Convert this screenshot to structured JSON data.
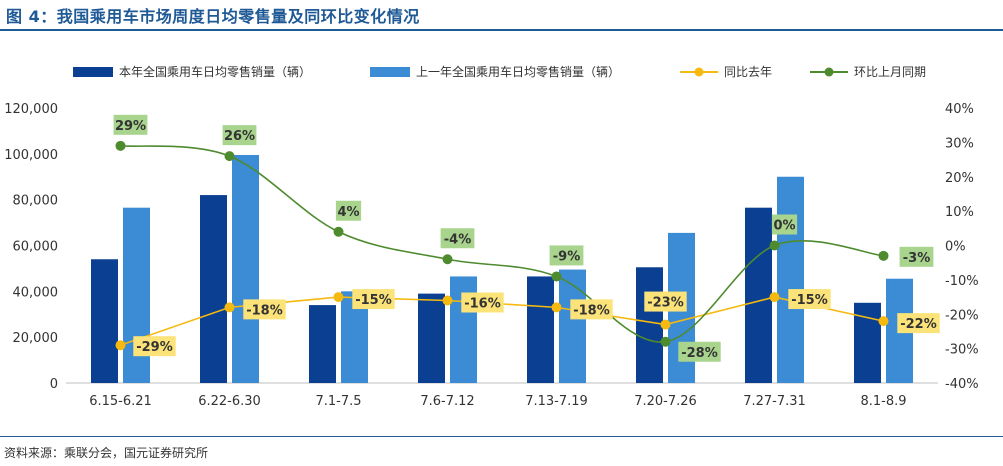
{
  "title": "图 4：我国乘用车市场周度日均零售量及同环比变化情况",
  "source": "资料来源：乘联分会，国元证券研究所",
  "colors": {
    "title": "#1f5a96",
    "bar_current": "#0b3f91",
    "bar_last": "#3b8bd5",
    "yoy": "#f5b90f",
    "mom": "#4e8b2e",
    "yoy_label_bg": "#fbe37a",
    "mom_label_bg": "#a8d48e"
  },
  "chart_data": {
    "type": "bar",
    "categories": [
      "6.15-6.21",
      "6.22-6.30",
      "7.1-7.5",
      "7.6-7.12",
      "7.13-7.19",
      "7.20-7.26",
      "7.27-7.31",
      "8.1-8.9"
    ],
    "series": [
      {
        "name": "本年全国乘用车日均零售销量（辆）",
        "kind": "bar",
        "axis": "left",
        "values": [
          54000,
          82000,
          34000,
          39000,
          46500,
          50500,
          76500,
          35000
        ]
      },
      {
        "name": "上一年全国乘用车日均零售销量（辆）",
        "kind": "bar",
        "axis": "left",
        "values": [
          76500,
          99500,
          40000,
          46500,
          49500,
          65500,
          90000,
          45500
        ]
      },
      {
        "name": "同比去年",
        "kind": "line",
        "axis": "right",
        "values": [
          -29,
          -18,
          -15,
          -16,
          -18,
          -23,
          -15,
          -22
        ],
        "labels": [
          "-29%",
          "-18%",
          "-15%",
          "-16%",
          "-18%",
          "-23%",
          "-15%",
          "-22%"
        ]
      },
      {
        "name": "环比上月同期",
        "kind": "line",
        "axis": "right",
        "smooth": true,
        "values": [
          29,
          26,
          4,
          -4,
          -9,
          -28,
          0,
          -3
        ],
        "labels": [
          "29%",
          "26%",
          "4%",
          "-4%",
          "-9%",
          "-28%",
          "0%",
          "-3%"
        ]
      }
    ],
    "ylim_left": [
      0,
      120000
    ],
    "yticks_left": [
      "0",
      "20,000",
      "40,000",
      "60,000",
      "80,000",
      "100,000",
      "120,000"
    ],
    "ylim_right": [
      -40,
      40
    ],
    "yticks_right": [
      "-40%",
      "-30%",
      "-20%",
      "-10%",
      "0%",
      "10%",
      "20%",
      "30%",
      "40%"
    ],
    "grid": false,
    "legend_position": "top"
  }
}
